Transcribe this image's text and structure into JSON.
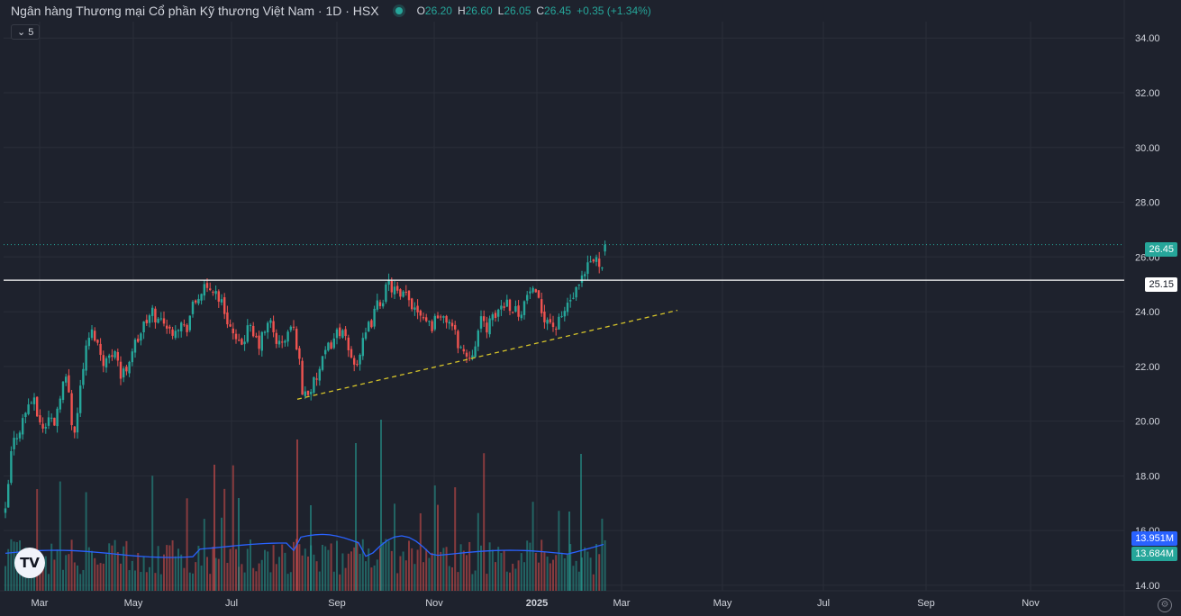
{
  "header": {
    "title": "Ngân hàng Thương mại Cổ phần Kỹ thương Việt Nam · 1D · HSX",
    "ohlc": [
      {
        "k": "O",
        "v": "26.20"
      },
      {
        "k": "H",
        "v": "26.60"
      },
      {
        "k": "L",
        "v": "26.05"
      },
      {
        "k": "C",
        "v": "26.45"
      },
      {
        "k": "",
        "v": "+0.35 (+1.34%)"
      }
    ],
    "interval_badge": "5"
  },
  "price_labels": {
    "last_price": "26.45",
    "horizontal_line": "25.15",
    "volume_ma": "13.951M",
    "volume": "13.684M"
  },
  "colors": {
    "background": "#1e222d",
    "grid": "#2a2e39",
    "up": "#26a69a",
    "down": "#ef5350",
    "volume_ma": "#2962ff",
    "trendline": "#d6c42a",
    "hline": "#ffffff"
  },
  "chart_data": {
    "type": "candlestick",
    "y_axis": {
      "ticks": [
        "34.00",
        "32.00",
        "30.00",
        "28.00",
        "26.00",
        "24.00",
        "22.00",
        "20.00",
        "18.00",
        "16.00",
        "14.00"
      ],
      "ylim": [
        13.8,
        34.6
      ]
    },
    "x_axis": {
      "tick_labels": [
        "Mar",
        "May",
        "Jul",
        "Sep",
        "Nov",
        "2025",
        "Mar",
        "May",
        "Jul",
        "Sep",
        "Nov"
      ]
    },
    "price_path": [
      [
        0,
        16.6
      ],
      [
        3,
        17.6
      ],
      [
        7,
        19.0
      ],
      [
        12,
        19.5
      ],
      [
        18,
        19.9
      ],
      [
        25,
        20.6
      ],
      [
        30,
        20.8
      ],
      [
        36,
        20.2
      ],
      [
        42,
        19.7
      ],
      [
        48,
        20.1
      ],
      [
        55,
        20.0
      ],
      [
        61,
        21.1
      ],
      [
        66,
        21.6
      ],
      [
        70,
        21.2
      ],
      [
        75,
        19.6
      ],
      [
        79,
        20.0
      ],
      [
        85,
        21.8
      ],
      [
        92,
        23.0
      ],
      [
        98,
        23.3
      ],
      [
        104,
        22.6
      ],
      [
        110,
        22.2
      ],
      [
        116,
        22.3
      ],
      [
        122,
        22.8
      ],
      [
        128,
        21.6
      ],
      [
        134,
        21.9
      ],
      [
        140,
        22.6
      ],
      [
        146,
        22.9
      ],
      [
        152,
        23.4
      ],
      [
        158,
        23.7
      ],
      [
        164,
        24.0
      ],
      [
        170,
        23.6
      ],
      [
        176,
        23.8
      ],
      [
        182,
        23.2
      ],
      [
        188,
        23.5
      ],
      [
        194,
        23.6
      ],
      [
        200,
        23.3
      ],
      [
        206,
        24.0
      ],
      [
        212,
        24.4
      ],
      [
        218,
        24.8
      ],
      [
        224,
        24.7
      ],
      [
        230,
        24.9
      ],
      [
        236,
        24.6
      ],
      [
        241,
        24.2
      ],
      [
        246,
        23.8
      ],
      [
        252,
        23.2
      ],
      [
        258,
        22.6
      ],
      [
        264,
        23.0
      ],
      [
        270,
        23.4
      ],
      [
        276,
        23.0
      ],
      [
        282,
        22.8
      ],
      [
        288,
        23.3
      ],
      [
        294,
        23.6
      ],
      [
        300,
        23.0
      ],
      [
        306,
        22.7
      ],
      [
        312,
        23.1
      ],
      [
        318,
        23.5
      ],
      [
        324,
        22.8
      ],
      [
        330,
        21.0
      ],
      [
        336,
        21.1
      ],
      [
        342,
        21.3
      ],
      [
        348,
        21.8
      ],
      [
        354,
        22.3
      ],
      [
        360,
        22.8
      ],
      [
        366,
        23.1
      ],
      [
        372,
        23.4
      ],
      [
        378,
        22.8
      ],
      [
        384,
        22.3
      ],
      [
        390,
        22.2
      ],
      [
        396,
        22.7
      ],
      [
        402,
        23.3
      ],
      [
        408,
        23.8
      ],
      [
        414,
        24.3
      ],
      [
        420,
        24.6
      ],
      [
        426,
        25.0
      ],
      [
        432,
        24.8
      ],
      [
        438,
        24.4
      ],
      [
        444,
        24.6
      ],
      [
        450,
        24.3
      ],
      [
        456,
        24.2
      ],
      [
        462,
        24.0
      ],
      [
        468,
        23.7
      ],
      [
        474,
        23.5
      ],
      [
        480,
        24.0
      ],
      [
        486,
        23.6
      ],
      [
        492,
        23.8
      ],
      [
        498,
        23.2
      ],
      [
        504,
        22.8
      ],
      [
        510,
        22.4
      ],
      [
        516,
        22.4
      ],
      [
        522,
        23.0
      ],
      [
        528,
        23.6
      ],
      [
        534,
        23.5
      ],
      [
        540,
        23.6
      ],
      [
        546,
        24.0
      ],
      [
        552,
        24.3
      ],
      [
        558,
        24.4
      ],
      [
        564,
        24.1
      ],
      [
        570,
        24.0
      ],
      [
        576,
        24.3
      ],
      [
        582,
        24.8
      ],
      [
        588,
        24.5
      ],
      [
        594,
        24.1
      ],
      [
        600,
        23.8
      ],
      [
        606,
        23.6
      ],
      [
        612,
        23.4
      ],
      [
        618,
        23.8
      ],
      [
        624,
        24.3
      ],
      [
        630,
        24.5
      ],
      [
        636,
        24.8
      ],
      [
        642,
        25.2
      ],
      [
        648,
        25.7
      ],
      [
        654,
        25.9
      ],
      [
        660,
        25.8
      ],
      [
        666,
        26.0
      ],
      [
        672,
        26.45
      ]
    ],
    "horizontal_line": 25.15,
    "trendline": {
      "from": [
        330,
        20.8
      ],
      "to": [
        752,
        24.05
      ]
    },
    "last_price_line": 26.45
  }
}
